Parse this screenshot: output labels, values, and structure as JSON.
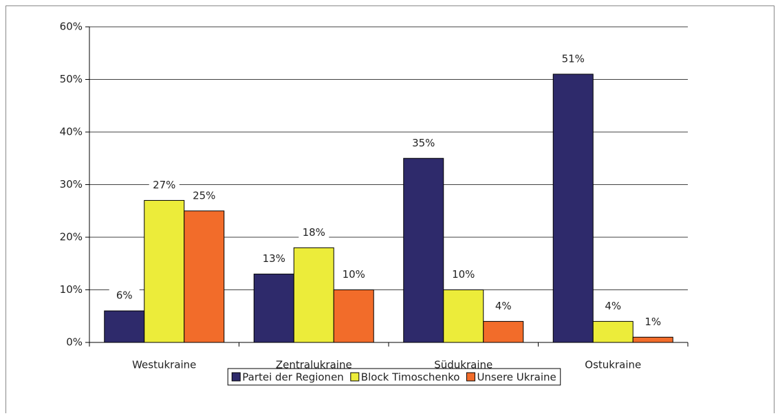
{
  "chart_data": {
    "type": "bar",
    "categories": [
      "Westukraine",
      "Zentralukraine",
      "Südukraine",
      "Ostukraine"
    ],
    "series": [
      {
        "name": "Partei der Regionen",
        "color": "#2e2a6b",
        "values": [
          6,
          13,
          35,
          51
        ],
        "value_labels": [
          "6%",
          "13%",
          "35%",
          "51%"
        ]
      },
      {
        "name": "Block Timoschenko",
        "color": "#ecec3a",
        "values": [
          27,
          18,
          10,
          4
        ],
        "value_labels": [
          "27%",
          "18%",
          "10%",
          "4%"
        ]
      },
      {
        "name": "Unsere Ukraine",
        "color": "#f26c2a",
        "values": [
          25,
          10,
          4,
          1
        ],
        "value_labels": [
          "25%",
          "10%",
          "4%",
          "1%"
        ]
      }
    ],
    "ylim": [
      0,
      60
    ],
    "yticks": [
      {
        "value": 0,
        "label": "0%"
      },
      {
        "value": 10,
        "label": "10%"
      },
      {
        "value": 20,
        "label": "20%"
      },
      {
        "value": 30,
        "label": "30%"
      },
      {
        "value": 40,
        "label": "40%"
      },
      {
        "value": 50,
        "label": "50%"
      },
      {
        "value": 60,
        "label": "60%"
      }
    ],
    "grid": true,
    "legend": "bottom"
  }
}
